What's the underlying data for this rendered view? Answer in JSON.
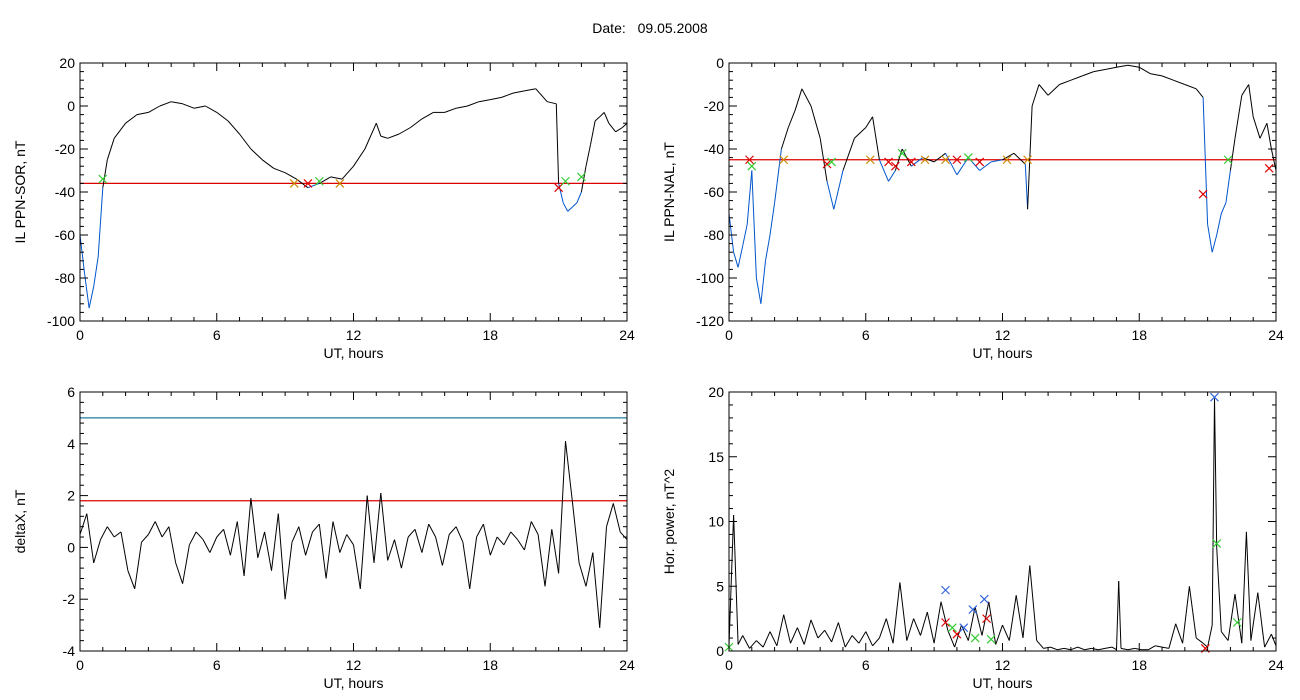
{
  "page": {
    "title_label": "Date:",
    "title_value": "09.05.2008"
  },
  "colors": {
    "axis": "#000000",
    "data_line": "#000000",
    "below_threshold": "#0055cc",
    "threshold": "#dd0000",
    "upper_threshold": "#1f7fa0",
    "marker_red": "#dd0000",
    "marker_green": "#33cc33",
    "marker_blue": "#3366dd",
    "marker_orange": "#cc8800"
  },
  "chart_data": [
    {
      "id": "sor",
      "type": "line",
      "xlabel": "UT, hours",
      "ylabel": "IL PPN-SOR, nT",
      "xlim": [
        0,
        24
      ],
      "ylim": [
        -100,
        20
      ],
      "xticks": [
        0,
        6,
        12,
        18,
        24
      ],
      "yticks": [
        -100,
        -80,
        -60,
        -40,
        -20,
        0,
        20
      ],
      "threshold": -36,
      "series": [
        {
          "x": [
            0,
            0.2,
            0.4,
            0.6,
            0.8,
            1.0,
            1.2,
            1.5,
            2.0,
            2.5,
            3.0,
            3.5,
            4.0,
            4.5,
            5.0,
            5.5,
            6.0,
            6.5,
            7.0,
            7.5,
            8.0,
            8.5,
            9.0,
            9.5,
            10.0,
            10.5,
            11.0,
            11.5,
            12.0,
            12.5,
            13.0,
            13.2,
            13.5,
            14.0,
            14.5,
            15.0,
            15.5,
            16.0,
            16.5,
            17.0,
            17.5,
            18.0,
            18.5,
            19.0,
            19.5,
            20.0,
            20.5,
            20.9,
            21.0,
            21.2,
            21.4,
            21.6,
            21.8,
            22.0,
            22.2,
            22.4,
            22.6,
            22.8,
            23.0,
            23.2,
            23.5,
            23.8,
            24.0
          ],
          "y": [
            -60,
            -78,
            -94,
            -84,
            -70,
            -38,
            -25,
            -15,
            -8,
            -4,
            -3,
            0,
            2,
            1,
            -1,
            0,
            -3,
            -7,
            -13,
            -20,
            -25,
            -29,
            -31,
            -34,
            -38,
            -36,
            -33,
            -34,
            -28,
            -20,
            -8,
            -14,
            -15,
            -13,
            -10,
            -6,
            -3,
            -3,
            -1,
            0,
            2,
            3,
            4,
            6,
            7,
            8,
            2,
            1,
            -36,
            -45,
            -49,
            -47,
            -45,
            -40,
            -28,
            -18,
            -7,
            -5,
            -3,
            -8,
            -12,
            -10,
            -8
          ]
        }
      ],
      "markers": [
        {
          "x": 1.0,
          "y": -34,
          "color": "marker_green"
        },
        {
          "x": 9.4,
          "y": -36,
          "color": "marker_orange"
        },
        {
          "x": 10.0,
          "y": -36,
          "color": "marker_red"
        },
        {
          "x": 10.5,
          "y": -35,
          "color": "marker_green"
        },
        {
          "x": 11.4,
          "y": -36,
          "color": "marker_orange"
        },
        {
          "x": 21.0,
          "y": -38,
          "color": "marker_red"
        },
        {
          "x": 21.3,
          "y": -35,
          "color": "marker_green"
        },
        {
          "x": 22.0,
          "y": -33,
          "color": "marker_green"
        }
      ]
    },
    {
      "id": "nal",
      "type": "line",
      "xlabel": "UT, hours",
      "ylabel": "IL PPN-NAL, nT",
      "xlim": [
        0,
        24
      ],
      "ylim": [
        -120,
        0
      ],
      "xticks": [
        0,
        6,
        12,
        18,
        24
      ],
      "yticks": [
        -120,
        -100,
        -80,
        -60,
        -40,
        -20,
        0
      ],
      "threshold": -45,
      "series": [
        {
          "x": [
            0,
            0.2,
            0.4,
            0.6,
            0.8,
            1.0,
            1.2,
            1.4,
            1.6,
            1.8,
            2.0,
            2.3,
            2.6,
            2.9,
            3.2,
            3.6,
            4.0,
            4.3,
            4.6,
            5.0,
            5.5,
            6.0,
            6.3,
            6.6,
            7.0,
            7.3,
            7.6,
            8.0,
            8.5,
            9.0,
            9.5,
            10.0,
            10.5,
            11.0,
            11.5,
            12.0,
            12.5,
            13.0,
            13.1,
            13.3,
            13.6,
            14.0,
            14.5,
            15.0,
            15.5,
            16.0,
            16.5,
            17.0,
            17.5,
            18.0,
            18.5,
            19.0,
            19.5,
            20.0,
            20.5,
            20.8,
            21.0,
            21.2,
            21.4,
            21.6,
            21.8,
            22.0,
            22.2,
            22.5,
            22.8,
            23.0,
            23.3,
            23.6,
            23.8,
            24.0
          ],
          "y": [
            -70,
            -88,
            -95,
            -85,
            -75,
            -50,
            -100,
            -112,
            -92,
            -80,
            -65,
            -40,
            -30,
            -22,
            -12,
            -20,
            -35,
            -55,
            -68,
            -50,
            -35,
            -30,
            -25,
            -45,
            -55,
            -50,
            -40,
            -48,
            -44,
            -46,
            -42,
            -52,
            -44,
            -50,
            -46,
            -45,
            -42,
            -47,
            -68,
            -20,
            -10,
            -15,
            -10,
            -8,
            -6,
            -4,
            -3,
            -2,
            -1,
            -2,
            -5,
            -6,
            -8,
            -10,
            -12,
            -16,
            -75,
            -88,
            -80,
            -70,
            -65,
            -50,
            -35,
            -15,
            -10,
            -25,
            -35,
            -28,
            -40,
            -50
          ]
        }
      ],
      "markers": [
        {
          "x": 0.9,
          "y": -45,
          "color": "marker_red"
        },
        {
          "x": 1.0,
          "y": -48,
          "color": "marker_green"
        },
        {
          "x": 2.4,
          "y": -45,
          "color": "marker_orange"
        },
        {
          "x": 4.3,
          "y": -47,
          "color": "marker_red"
        },
        {
          "x": 4.5,
          "y": -46,
          "color": "marker_green"
        },
        {
          "x": 6.2,
          "y": -45,
          "color": "marker_orange"
        },
        {
          "x": 7.0,
          "y": -46,
          "color": "marker_red"
        },
        {
          "x": 7.3,
          "y": -48,
          "color": "marker_red"
        },
        {
          "x": 7.6,
          "y": -42,
          "color": "marker_green"
        },
        {
          "x": 8.0,
          "y": -46,
          "color": "marker_red"
        },
        {
          "x": 8.6,
          "y": -45,
          "color": "marker_orange"
        },
        {
          "x": 9.5,
          "y": -45,
          "color": "marker_orange"
        },
        {
          "x": 10.0,
          "y": -45,
          "color": "marker_red"
        },
        {
          "x": 10.5,
          "y": -44,
          "color": "marker_green"
        },
        {
          "x": 11.0,
          "y": -46,
          "color": "marker_red"
        },
        {
          "x": 12.2,
          "y": -45,
          "color": "marker_orange"
        },
        {
          "x": 13.1,
          "y": -45,
          "color": "marker_orange"
        },
        {
          "x": 20.8,
          "y": -61,
          "color": "marker_red"
        },
        {
          "x": 21.9,
          "y": -45,
          "color": "marker_green"
        },
        {
          "x": 23.7,
          "y": -49,
          "color": "marker_red"
        }
      ]
    },
    {
      "id": "deltax",
      "type": "line",
      "xlabel": "UT, hours",
      "ylabel": "deltaX, nT",
      "xlim": [
        0,
        24
      ],
      "ylim": [
        -4,
        6
      ],
      "xticks": [
        0,
        6,
        12,
        18,
        24
      ],
      "yticks": [
        -4,
        -2,
        0,
        2,
        4,
        6
      ],
      "threshold": 1.8,
      "upper_threshold": 5.0,
      "series": [
        {
          "x": [
            0,
            0.3,
            0.6,
            0.9,
            1.2,
            1.5,
            1.8,
            2.1,
            2.4,
            2.7,
            3.0,
            3.3,
            3.6,
            3.9,
            4.2,
            4.5,
            4.8,
            5.1,
            5.4,
            5.7,
            6.0,
            6.3,
            6.6,
            6.9,
            7.2,
            7.5,
            7.8,
            8.1,
            8.4,
            8.7,
            9.0,
            9.3,
            9.6,
            9.9,
            10.2,
            10.5,
            10.8,
            11.1,
            11.4,
            11.7,
            12.0,
            12.3,
            12.6,
            12.9,
            13.2,
            13.5,
            13.8,
            14.1,
            14.4,
            14.7,
            15.0,
            15.3,
            15.6,
            15.9,
            16.2,
            16.5,
            16.8,
            17.1,
            17.4,
            17.7,
            18.0,
            18.3,
            18.6,
            18.9,
            19.2,
            19.5,
            19.8,
            20.1,
            20.4,
            20.7,
            21.0,
            21.3,
            21.6,
            21.9,
            22.2,
            22.5,
            22.8,
            23.1,
            23.4,
            23.7,
            24.0
          ],
          "y": [
            0.5,
            1.3,
            -0.6,
            0.3,
            0.8,
            0.4,
            0.6,
            -0.9,
            -1.6,
            0.2,
            0.5,
            1.0,
            0.4,
            0.8,
            -0.6,
            -1.4,
            0.1,
            0.6,
            0.3,
            -0.2,
            0.4,
            0.7,
            -0.3,
            1.0,
            -1.1,
            1.9,
            -0.4,
            0.6,
            -0.9,
            1.3,
            -2.0,
            0.2,
            0.8,
            -0.3,
            0.6,
            0.9,
            -1.2,
            1.0,
            -0.2,
            0.5,
            0.1,
            -1.6,
            2.0,
            -0.6,
            2.1,
            -0.5,
            0.3,
            -0.8,
            0.4,
            0.7,
            -0.2,
            0.9,
            0.4,
            -0.7,
            0.5,
            0.8,
            0.2,
            -1.6,
            0.4,
            0.9,
            -0.3,
            0.4,
            0.1,
            0.6,
            0.3,
            -0.1,
            1.0,
            0.5,
            -1.5,
            0.7,
            -1.0,
            4.1,
            1.8,
            -0.6,
            -1.5,
            -0.2,
            -3.1,
            0.8,
            1.7,
            0.6,
            0.3
          ]
        }
      ],
      "markers": []
    },
    {
      "id": "power",
      "type": "line",
      "xlabel": "UT, hours",
      "ylabel": "Hor. power, nT^2",
      "xlim": [
        0,
        24
      ],
      "ylim": [
        0,
        20
      ],
      "xticks": [
        0,
        6,
        12,
        18,
        24
      ],
      "yticks": [
        0,
        5,
        10,
        15,
        20
      ],
      "series": [
        {
          "x": [
            0,
            0.2,
            0.4,
            0.6,
            0.9,
            1.2,
            1.5,
            1.8,
            2.1,
            2.4,
            2.7,
            3.0,
            3.3,
            3.6,
            3.9,
            4.2,
            4.5,
            4.8,
            5.1,
            5.4,
            5.7,
            6.0,
            6.3,
            6.6,
            6.9,
            7.2,
            7.5,
            7.8,
            8.1,
            8.4,
            8.7,
            9.0,
            9.3,
            9.6,
            9.9,
            10.2,
            10.5,
            10.8,
            11.1,
            11.4,
            11.7,
            12.0,
            12.3,
            12.6,
            12.9,
            13.2,
            13.5,
            13.8,
            14.1,
            14.4,
            14.7,
            15.0,
            15.3,
            15.6,
            15.9,
            16.2,
            16.5,
            16.8,
            17.0,
            17.1,
            17.2,
            17.5,
            17.8,
            18.1,
            18.4,
            18.7,
            19.0,
            19.3,
            19.6,
            19.9,
            20.2,
            20.5,
            20.8,
            21.0,
            21.2,
            21.3,
            21.4,
            21.6,
            21.9,
            22.2,
            22.5,
            22.7,
            22.9,
            23.2,
            23.5,
            23.8,
            24.0
          ],
          "y": [
            0.4,
            10.5,
            0.5,
            1.2,
            0.2,
            0.8,
            0.3,
            1.5,
            0.4,
            2.8,
            0.6,
            1.8,
            0.5,
            2.4,
            1.0,
            1.6,
            0.7,
            2.2,
            0.3,
            1.2,
            0.6,
            1.5,
            0.4,
            1.0,
            2.5,
            0.6,
            5.3,
            0.8,
            2.5,
            1.2,
            3.0,
            0.6,
            3.8,
            1.6,
            0.3,
            2.0,
            0.8,
            3.4,
            1.2,
            3.8,
            0.5,
            2.0,
            0.8,
            4.3,
            1.0,
            6.6,
            0.8,
            0.2,
            0.3,
            0.1,
            0.2,
            0.1,
            0.3,
            0.1,
            0.2,
            0.1,
            0.2,
            0.3,
            0.1,
            5.4,
            0.2,
            0.1,
            0.2,
            0.1,
            0.1,
            0.4,
            0.3,
            0.2,
            2.1,
            0.6,
            5.0,
            1.0,
            0.6,
            0.3,
            2.0,
            19.5,
            8.0,
            1.5,
            0.8,
            4.4,
            0.6,
            9.2,
            0.8,
            4.5,
            0.3,
            1.3,
            0.4
          ]
        }
      ],
      "markers": [
        {
          "x": 0.0,
          "y": 0.3,
          "color": "marker_green"
        },
        {
          "x": 9.5,
          "y": 4.7,
          "color": "marker_blue"
        },
        {
          "x": 9.5,
          "y": 2.2,
          "color": "marker_red"
        },
        {
          "x": 9.8,
          "y": 1.8,
          "color": "marker_green"
        },
        {
          "x": 10.0,
          "y": 1.3,
          "color": "marker_red"
        },
        {
          "x": 10.3,
          "y": 1.8,
          "color": "marker_blue"
        },
        {
          "x": 10.7,
          "y": 3.2,
          "color": "marker_blue"
        },
        {
          "x": 10.8,
          "y": 1.0,
          "color": "marker_green"
        },
        {
          "x": 11.2,
          "y": 4.0,
          "color": "marker_blue"
        },
        {
          "x": 11.3,
          "y": 2.5,
          "color": "marker_red"
        },
        {
          "x": 11.5,
          "y": 0.9,
          "color": "marker_green"
        },
        {
          "x": 20.9,
          "y": 0.2,
          "color": "marker_red"
        },
        {
          "x": 21.3,
          "y": 19.6,
          "color": "marker_blue"
        },
        {
          "x": 21.4,
          "y": 8.3,
          "color": "marker_green"
        },
        {
          "x": 22.3,
          "y": 2.2,
          "color": "marker_green"
        }
      ]
    }
  ]
}
